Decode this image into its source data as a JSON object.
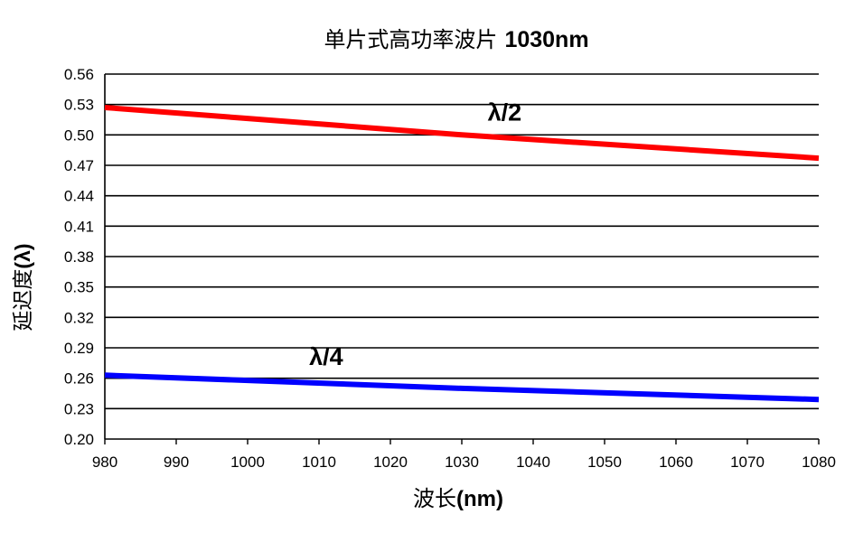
{
  "chart_data": {
    "type": "line",
    "title": "单片式高功率波片 1030nm",
    "title_main": "单片式高功率波片",
    "title_suffix": "1030nm",
    "xlabel": "波长(nm)",
    "xlabel_main": "波长",
    "xlabel_unit": "(nm)",
    "ylabel": "延迟度(λ)",
    "ylabel_main": "延迟度",
    "ylabel_unit": "(λ)",
    "xlim": [
      980,
      1080
    ],
    "ylim": [
      0.2,
      0.56
    ],
    "x_ticks": [
      "980",
      "990",
      "1000",
      "1010",
      "1020",
      "1030",
      "1040",
      "1050",
      "1060",
      "1070",
      "1080"
    ],
    "y_ticks": [
      "0.56",
      "0.53",
      "0.50",
      "0.47",
      "0.44",
      "0.41",
      "0.38",
      "0.35",
      "0.32",
      "0.29",
      "0.26",
      "0.23",
      "0.20"
    ],
    "grid": "horizontal",
    "series": [
      {
        "name": "λ/2",
        "color": "#ff0000",
        "x": [
          980,
          1030,
          1080
        ],
        "y": [
          0.527,
          0.5,
          0.477
        ],
        "label_x": 1036,
        "label_y": 0.514
      },
      {
        "name": "λ/4",
        "color": "#0000ff",
        "x": [
          980,
          1030,
          1080
        ],
        "y": [
          0.263,
          0.25,
          0.239
        ],
        "label_x": 1011,
        "label_y": 0.273
      }
    ]
  }
}
